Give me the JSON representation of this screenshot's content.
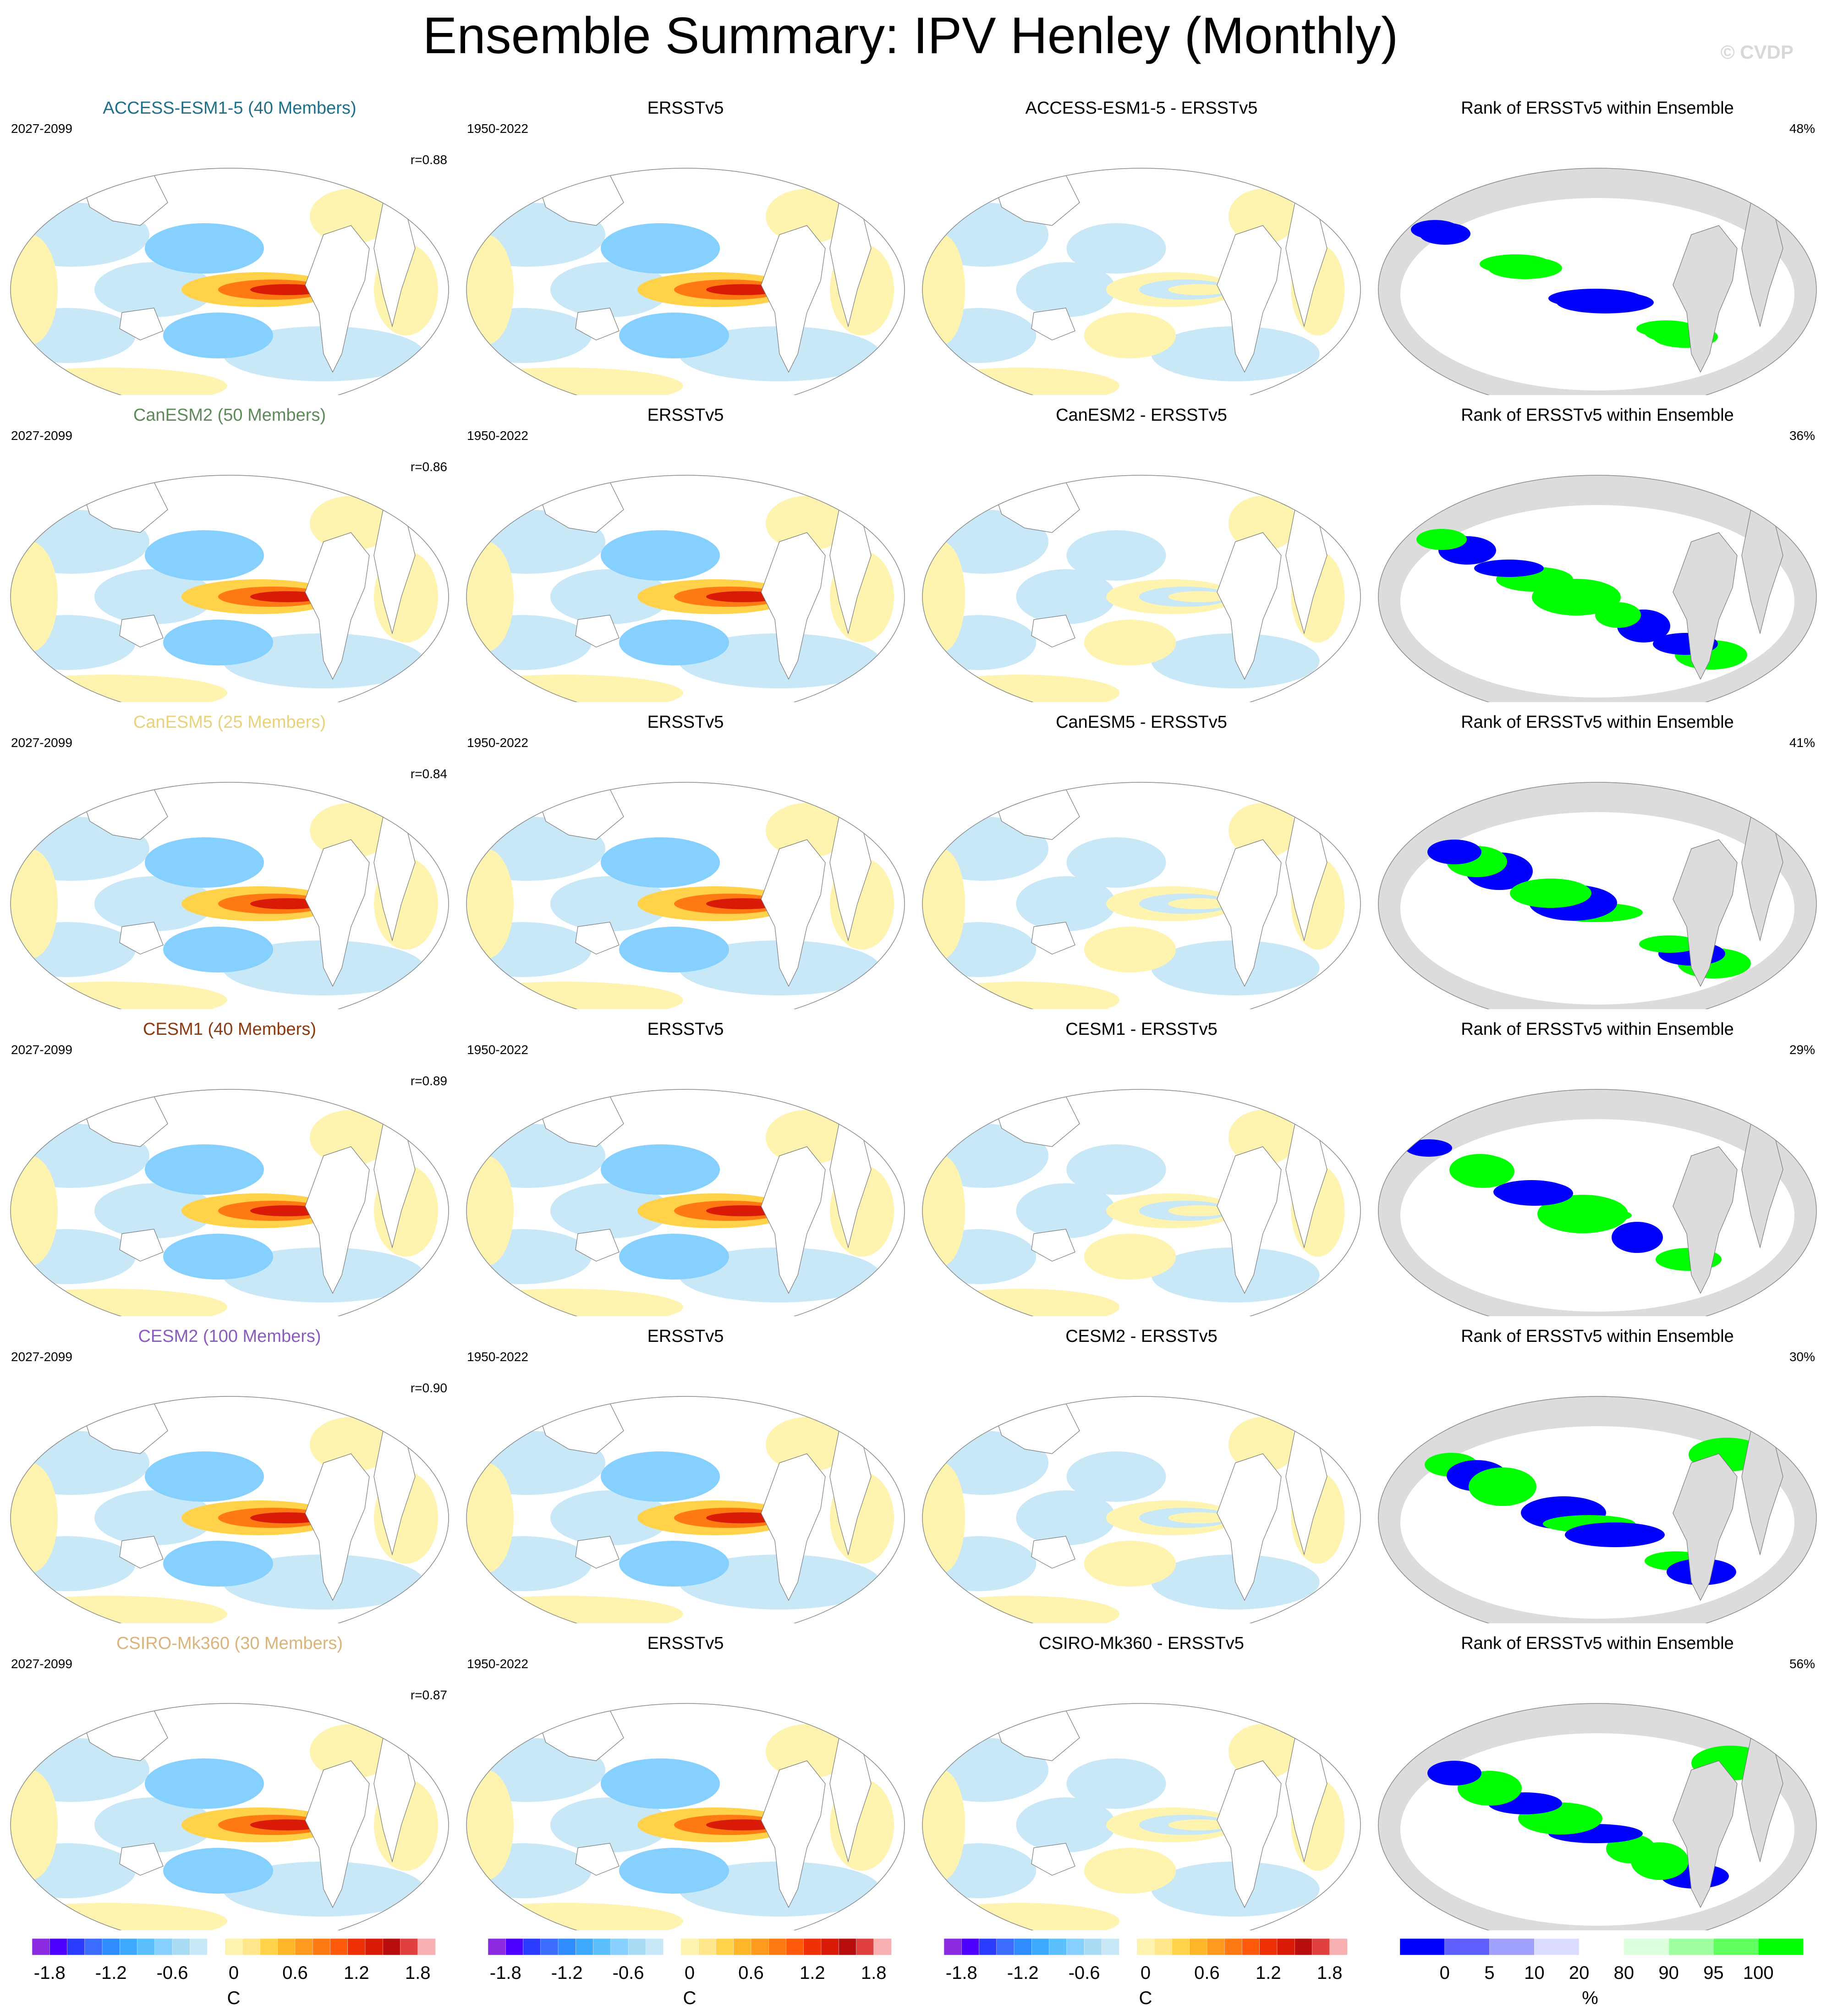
{
  "title": "Ensemble Summary: IPV Henley (Monthly)",
  "watermark": "© CVDP",
  "column_titles": {
    "obs": "ERSSTv5",
    "rank": "Rank of ERSSTv5 within Ensemble"
  },
  "rows": [
    {
      "model": "ACCESS-ESM1-5",
      "label": "ACCESS-ESM1-5 (40 Members)",
      "color": "#1f6f8b",
      "model_years": "2027-2099",
      "obs_years": "1950-2022",
      "r": "r=0.88",
      "diff_title": "ACCESS-ESM1-5 - ERSSTv5",
      "rank_pct": "48%"
    },
    {
      "model": "CanESM2",
      "label": "CanESM2 (50 Members)",
      "color": "#5e8a5a",
      "model_years": "2027-2099",
      "obs_years": "1950-2022",
      "r": "r=0.86",
      "diff_title": "CanESM2 - ERSSTv5",
      "rank_pct": "36%"
    },
    {
      "model": "CanESM5",
      "label": "CanESM5 (25 Members)",
      "color": "#e8d27a",
      "model_years": "2027-2099",
      "obs_years": "1950-2022",
      "r": "r=0.84",
      "diff_title": "CanESM5 - ERSSTv5",
      "rank_pct": "41%"
    },
    {
      "model": "CESM1",
      "label": "CESM1 (40 Members)",
      "color": "#8b3a0f",
      "model_years": "2027-2099",
      "obs_years": "1950-2022",
      "r": "r=0.89",
      "diff_title": "CESM1 - ERSSTv5",
      "rank_pct": "29%"
    },
    {
      "model": "CESM2",
      "label": "CESM2 (100 Members)",
      "color": "#8a5cc2",
      "model_years": "2027-2099",
      "obs_years": "1950-2022",
      "r": "r=0.90",
      "diff_title": "CESM2 - ERSSTv5",
      "rank_pct": "30%"
    },
    {
      "model": "CSIRO-Mk360",
      "label": "CSIRO-Mk360 (30 Members)",
      "color": "#d9b47c",
      "model_years": "2027-2099",
      "obs_years": "1950-2022",
      "r": "r=0.87",
      "diff_title": "CSIRO-Mk360 - ERSSTv5",
      "rank_pct": "56%"
    }
  ],
  "colorbars": {
    "temperature": {
      "unit": "C",
      "ticks": [
        "-1.8",
        "-1.2",
        "-0.6",
        "0",
        "0.6",
        "1.2",
        "1.8"
      ],
      "colors": [
        "#8a2be2",
        "#4b00ff",
        "#2a3cff",
        "#3a6cff",
        "#2e8cff",
        "#3fa8ff",
        "#5cc0ff",
        "#86d0ff",
        "#a8dcf5",
        "#c8e8f8",
        "#ffffff",
        "#fff3b0",
        "#ffe68a",
        "#ffd24a",
        "#ffb628",
        "#ff9a1e",
        "#ff7a12",
        "#ff5a0a",
        "#f03006",
        "#d81a06",
        "#b80e0e",
        "#e04040",
        "#f8b0b0"
      ]
    },
    "rank": {
      "unit": "%",
      "ticks": [
        "0",
        "5",
        "10",
        "20",
        "80",
        "90",
        "95",
        "100"
      ],
      "colors": [
        "#0000ff",
        "#6060ff",
        "#a0a0ff",
        "#dcdcff",
        "#ffffff",
        "#dcffdc",
        "#a0ffa0",
        "#60ff60",
        "#00ff00"
      ]
    }
  },
  "chart_data": {
    "type": "heatmap",
    "title": "Ensemble Summary: IPV Henley (Monthly)",
    "panel_grid": {
      "rows": 6,
      "columns": [
        "model ensemble mean",
        "ERSSTv5",
        "model - ERSSTv5",
        "Rank of ERSSTv5 within Ensemble"
      ]
    },
    "pattern_correlation": [
      {
        "model": "ACCESS-ESM1-5",
        "r": 0.88
      },
      {
        "model": "CanESM2",
        "r": 0.86
      },
      {
        "model": "CanESM5",
        "r": 0.84
      },
      {
        "model": "CESM1",
        "r": 0.89
      },
      {
        "model": "CESM2",
        "r": 0.9
      },
      {
        "model": "CSIRO-Mk360",
        "r": 0.87
      }
    ],
    "rank_percent": [
      {
        "model": "ACCESS-ESM1-5",
        "pct": 48
      },
      {
        "model": "CanESM2",
        "pct": 36
      },
      {
        "model": "CanESM5",
        "pct": 41
      },
      {
        "model": "CESM1",
        "pct": 29
      },
      {
        "model": "CESM2",
        "pct": 30
      },
      {
        "model": "CSIRO-Mk360",
        "pct": 56
      }
    ],
    "temperature_range": [
      -2.1,
      2.1
    ],
    "temperature_unit": "C",
    "rank_range": [
      0,
      100
    ],
    "rank_unit": "%"
  }
}
